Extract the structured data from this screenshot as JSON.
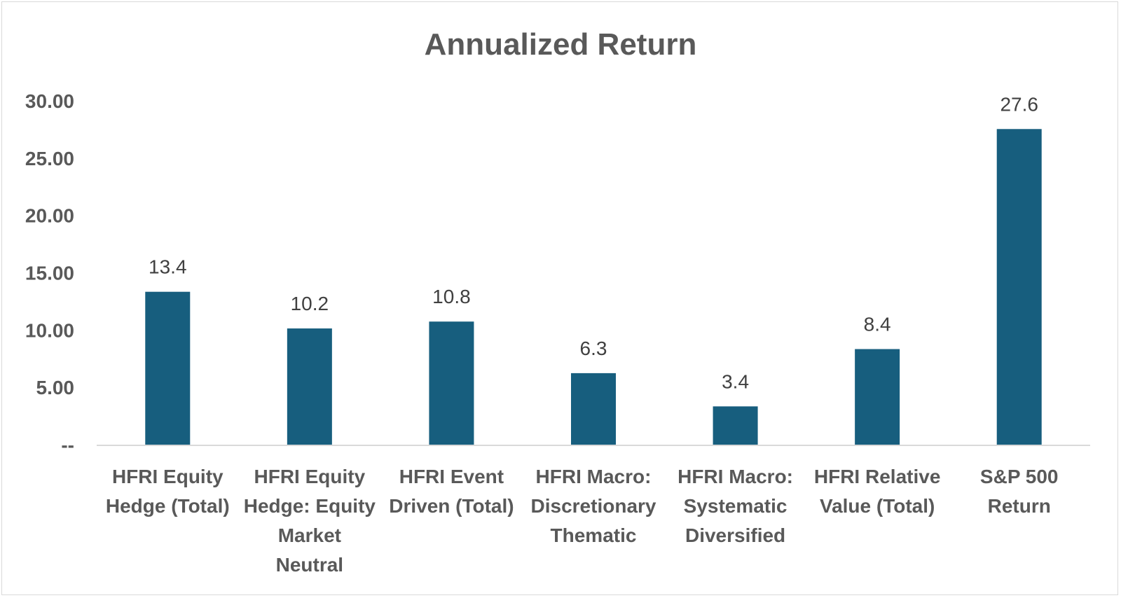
{
  "chart_data": {
    "type": "bar",
    "title": "Annualized Return",
    "xlabel": "",
    "ylabel": "",
    "categories": [
      [
        "HFRI Equity",
        "Hedge (Total)"
      ],
      [
        "HFRI Equity",
        "Hedge: Equity",
        "Market",
        "Neutral"
      ],
      [
        "HFRI Event",
        "Driven (Total)"
      ],
      [
        "HFRI Macro:",
        "Discretionary",
        "Thematic"
      ],
      [
        "HFRI Macro:",
        "Systematic",
        "Diversified"
      ],
      [
        "HFRI Relative",
        "Value (Total)"
      ],
      [
        "S&P 500",
        "Return"
      ]
    ],
    "values": [
      13.4,
      10.2,
      10.8,
      6.3,
      3.4,
      8.4,
      27.6
    ],
    "data_labels": [
      "13.4",
      "10.2",
      "10.8",
      "6.3",
      "3.4",
      "8.4",
      "27.6"
    ],
    "ylim": [
      0,
      30
    ],
    "yticks": [
      0,
      5,
      10,
      15,
      20,
      25,
      30
    ],
    "ytick_labels": [
      "--",
      "5.00",
      "10.00",
      "15.00",
      "20.00",
      "25.00",
      "30.00"
    ],
    "grid": false,
    "legend": "none",
    "colors": {
      "bar": "#175e7e",
      "title": "#595959",
      "axis_text": "#595959",
      "data_label": "#404040",
      "axis_line": "#d9d9d9"
    }
  }
}
